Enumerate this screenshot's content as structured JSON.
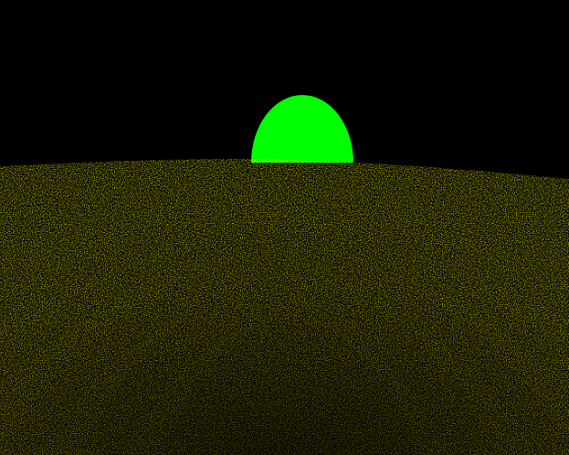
{
  "scene": {
    "colors": {
      "sky": "#000000",
      "ground": "#ffff00",
      "sun": "#00ff00",
      "shadow": "#000000"
    },
    "sun": {
      "shape": "semicircle"
    },
    "ground": {
      "texture": "noise-speckle",
      "pattern": "concentric-arches"
    },
    "arch_count": 5
  }
}
